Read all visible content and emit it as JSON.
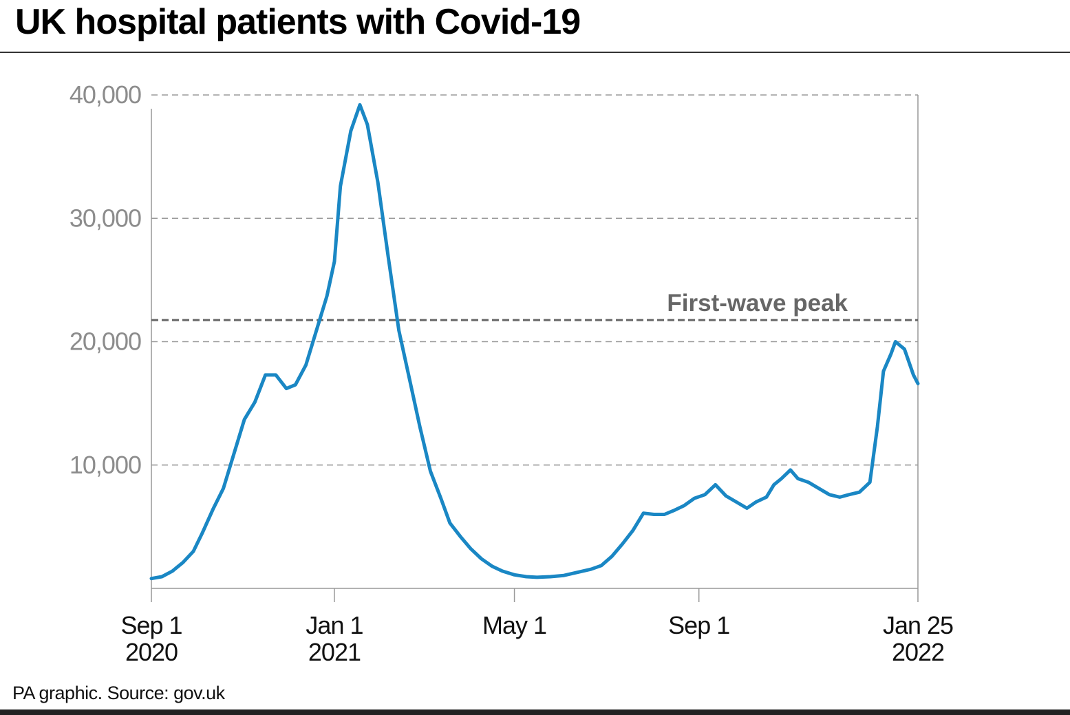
{
  "title": "UK hospital patients with Covid-19",
  "source": "PA graphic. Source: gov.uk",
  "chart_data": {
    "type": "line",
    "title": "UK hospital patients with Covid-19",
    "xlabel": "",
    "ylabel": "",
    "xlim": [
      "2020-09-01",
      "2022-01-25"
    ],
    "ylim": [
      0,
      40000
    ],
    "grid": true,
    "y_ticks": [
      {
        "value": 10000,
        "label": "10,000"
      },
      {
        "value": 20000,
        "label": "20,000"
      },
      {
        "value": 30000,
        "label": "30,000"
      },
      {
        "value": 40000,
        "label": "40,000"
      }
    ],
    "x_ticks": [
      {
        "date": "2020-09-01",
        "label": "Sep 1",
        "sublabel": "2020"
      },
      {
        "date": "2021-01-01",
        "label": "Jan 1",
        "sublabel": "2021"
      },
      {
        "date": "2021-05-01",
        "label": "May 1",
        "sublabel": ""
      },
      {
        "date": "2021-09-01",
        "label": "Sep 1",
        "sublabel": ""
      },
      {
        "date": "2022-01-25",
        "label": "Jan 25",
        "sublabel": "2022"
      }
    ],
    "reference_line": {
      "label": "First-wave peak",
      "value": 21750
    },
    "line_color": "#1a87c4",
    "series": [
      {
        "x": [
          "2020-09-01",
          "2020-09-08",
          "2020-09-15",
          "2020-09-22",
          "2020-09-29",
          "2020-10-05",
          "2020-10-12",
          "2020-10-19",
          "2020-10-26",
          "2020-11-02",
          "2020-11-09",
          "2020-11-16",
          "2020-11-23",
          "2020-11-30",
          "2020-12-06",
          "2020-12-13",
          "2020-12-20",
          "2020-12-27",
          "2021-01-01",
          "2021-01-05",
          "2021-01-12",
          "2021-01-18",
          "2021-01-23",
          "2021-01-30",
          "2021-02-06",
          "2021-02-13",
          "2021-02-20",
          "2021-02-27",
          "2021-03-06",
          "2021-03-13",
          "2021-03-19",
          "2021-03-26",
          "2021-04-02",
          "2021-04-09",
          "2021-04-16",
          "2021-04-23",
          "2021-05-01",
          "2021-05-09",
          "2021-05-16",
          "2021-05-25",
          "2021-06-03",
          "2021-06-12",
          "2021-06-21",
          "2021-06-28",
          "2021-07-05",
          "2021-07-12",
          "2021-07-19",
          "2021-07-26",
          "2021-08-02",
          "2021-08-09",
          "2021-08-15",
          "2021-08-22",
          "2021-08-29",
          "2021-09-05",
          "2021-09-12",
          "2021-09-19",
          "2021-09-26",
          "2021-10-03",
          "2021-10-09",
          "2021-10-16",
          "2021-10-21",
          "2021-10-26",
          "2021-11-01",
          "2021-11-06",
          "2021-11-13",
          "2021-11-20",
          "2021-11-27",
          "2021-12-04",
          "2021-12-10",
          "2021-12-17",
          "2021-12-24",
          "2021-12-29",
          "2022-01-02",
          "2022-01-07",
          "2022-01-10",
          "2022-01-16",
          "2022-01-22",
          "2022-01-25"
        ],
        "y": [
          800,
          950,
          1400,
          2100,
          3000,
          4500,
          6400,
          8100,
          10900,
          13700,
          15100,
          17300,
          17300,
          16200,
          16500,
          18100,
          20900,
          23700,
          26500,
          32600,
          37100,
          39200,
          37600,
          32900,
          26800,
          20900,
          17000,
          13100,
          9500,
          7300,
          5300,
          4200,
          3200,
          2400,
          1800,
          1400,
          1100,
          950,
          900,
          950,
          1050,
          1300,
          1550,
          1850,
          2600,
          3600,
          4700,
          6100,
          6000,
          6000,
          6300,
          6700,
          7300,
          7600,
          8400,
          7500,
          7000,
          6500,
          7000,
          7400,
          8400,
          8900,
          9600,
          8900,
          8600,
          8100,
          7600,
          7400,
          7600,
          7800,
          8600,
          13100,
          17600,
          19000,
          20000,
          19400,
          17300,
          16600
        ]
      }
    ]
  }
}
